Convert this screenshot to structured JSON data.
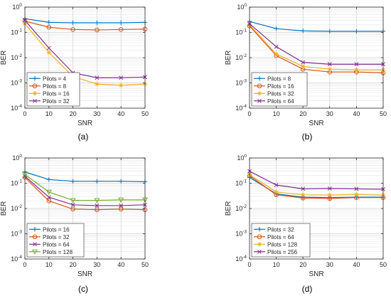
{
  "figure": {
    "panels": [
      {
        "caption": "(a)"
      },
      {
        "caption": "(b)"
      },
      {
        "caption": "(c)"
      },
      {
        "caption": "(d)"
      }
    ]
  },
  "chart_data": [
    {
      "type": "line",
      "xlabel": "SNR",
      "ylabel": "BER",
      "x": [
        0,
        10,
        20,
        30,
        40,
        50
      ],
      "xlim": [
        0,
        50
      ],
      "ylim": [
        0.0001,
        1
      ],
      "yscale": "log",
      "grid": true,
      "legend_position": "bottom-left",
      "series": [
        {
          "name": "Pilots = 4",
          "color": "#0072BD",
          "marker": "plus",
          "values": [
            0.35,
            0.25,
            0.24,
            0.24,
            0.24,
            0.25
          ]
        },
        {
          "name": "Pilots = 8",
          "color": "#D95319",
          "marker": "circle",
          "values": [
            0.28,
            0.16,
            0.13,
            0.125,
            0.13,
            0.135
          ]
        },
        {
          "name": "Pilots = 16",
          "color": "#EDB120",
          "marker": "asterisk",
          "values": [
            0.22,
            0.016,
            0.0018,
            0.0009,
            0.0008,
            0.0009
          ]
        },
        {
          "name": "Pilots = 32",
          "color": "#7E2F8E",
          "marker": "cross",
          "values": [
            0.3,
            0.024,
            0.0025,
            0.0016,
            0.0016,
            0.0017
          ]
        }
      ]
    },
    {
      "type": "line",
      "xlabel": "SNR",
      "ylabel": "BER",
      "x": [
        0,
        10,
        20,
        30,
        40,
        50
      ],
      "xlim": [
        0,
        50
      ],
      "ylim": [
        0.0001,
        1
      ],
      "yscale": "log",
      "grid": true,
      "legend_position": "bottom-left",
      "series": [
        {
          "name": "Pilots = 8",
          "color": "#0072BD",
          "marker": "plus",
          "values": [
            0.27,
            0.14,
            0.115,
            0.11,
            0.11,
            0.11
          ]
        },
        {
          "name": "Pilots = 16",
          "color": "#D95319",
          "marker": "circle",
          "values": [
            0.18,
            0.012,
            0.0035,
            0.0027,
            0.0027,
            0.0025
          ]
        },
        {
          "name": "Pilots = 32",
          "color": "#EDB120",
          "marker": "asterisk",
          "values": [
            0.2,
            0.014,
            0.0045,
            0.0035,
            0.0033,
            0.0033
          ]
        },
        {
          "name": "Pilots = 64",
          "color": "#7E2F8E",
          "marker": "cross",
          "values": [
            0.22,
            0.027,
            0.0065,
            0.0055,
            0.0055,
            0.0055
          ]
        }
      ]
    },
    {
      "type": "line",
      "xlabel": "SNR",
      "ylabel": "BER",
      "x": [
        0,
        10,
        20,
        30,
        40,
        50
      ],
      "xlim": [
        0,
        50
      ],
      "ylim": [
        0.0001,
        1
      ],
      "yscale": "log",
      "grid": true,
      "legend_position": "bottom-left",
      "series": [
        {
          "name": "Pilots = 16",
          "color": "#0072BD",
          "marker": "plus",
          "values": [
            0.28,
            0.14,
            0.12,
            0.12,
            0.12,
            0.115
          ]
        },
        {
          "name": "Pilots = 32",
          "color": "#D95319",
          "marker": "circle",
          "values": [
            0.17,
            0.02,
            0.0095,
            0.009,
            0.0095,
            0.009
          ]
        },
        {
          "name": "Pilots = 64",
          "color": "#7E2F8E",
          "marker": "cross",
          "values": [
            0.19,
            0.028,
            0.014,
            0.013,
            0.013,
            0.014
          ]
        },
        {
          "name": "Pilots = 128",
          "color": "#77AC30",
          "marker": "triangle-down",
          "values": [
            0.22,
            0.045,
            0.021,
            0.021,
            0.022,
            0.022
          ]
        }
      ]
    },
    {
      "type": "line",
      "xlabel": "SNR",
      "ylabel": "BER",
      "x": [
        0,
        10,
        20,
        30,
        40,
        50
      ],
      "xlim": [
        0,
        50
      ],
      "ylim": [
        0.0001,
        1
      ],
      "yscale": "log",
      "grid": true,
      "legend_position": "bottom-left",
      "series": [
        {
          "name": "Pilots = 32",
          "color": "#0072BD",
          "marker": "plus",
          "values": [
            0.17,
            0.038,
            0.028,
            0.027,
            0.028,
            0.028
          ]
        },
        {
          "name": "Pilots = 64",
          "color": "#D95319",
          "marker": "circle",
          "values": [
            0.2,
            0.035,
            0.026,
            0.025,
            0.027,
            0.027
          ]
        },
        {
          "name": "Pilots = 128",
          "color": "#EDB120",
          "marker": "asterisk",
          "values": [
            0.22,
            0.045,
            0.035,
            0.034,
            0.036,
            0.034
          ]
        },
        {
          "name": "Pilots = 256",
          "color": "#7E2F8E",
          "marker": "cross",
          "values": [
            0.3,
            0.085,
            0.06,
            0.062,
            0.06,
            0.058
          ]
        }
      ]
    }
  ]
}
